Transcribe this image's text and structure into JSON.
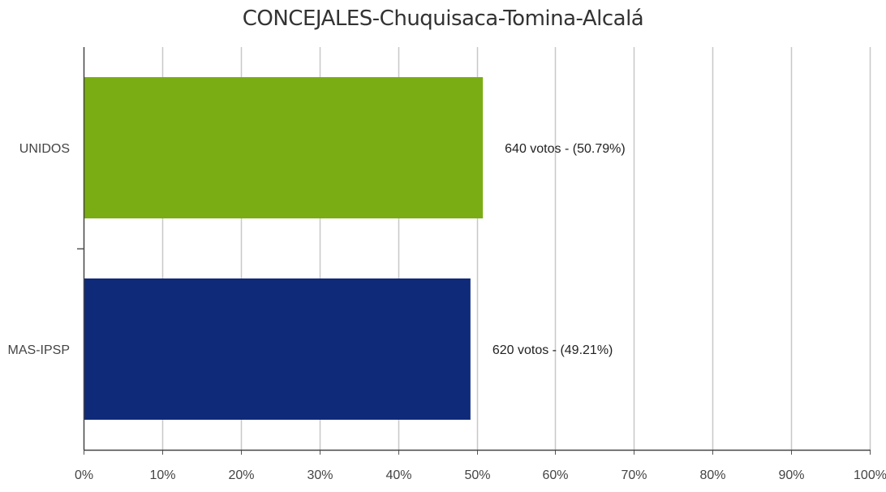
{
  "chart_data": {
    "type": "bar",
    "orientation": "horizontal",
    "title": "CONCEJALES-Chuquisaca-Tomina-Alcalá",
    "categories": [
      "UNIDOS",
      "MAS-IPSP"
    ],
    "values": [
      50.79,
      49.21
    ],
    "votes": [
      640,
      620
    ],
    "data_labels": [
      "640 votos - (50.79%)",
      "620 votos - (49.21%)"
    ],
    "colors": [
      "#7aad14",
      "#0f2a78"
    ],
    "xlim": [
      0,
      100
    ],
    "xticks": [
      "0%",
      "10%",
      "20%",
      "30%",
      "40%",
      "50%",
      "60%",
      "70%",
      "80%",
      "90%",
      "100%"
    ],
    "grid": true,
    "legend": "none"
  }
}
